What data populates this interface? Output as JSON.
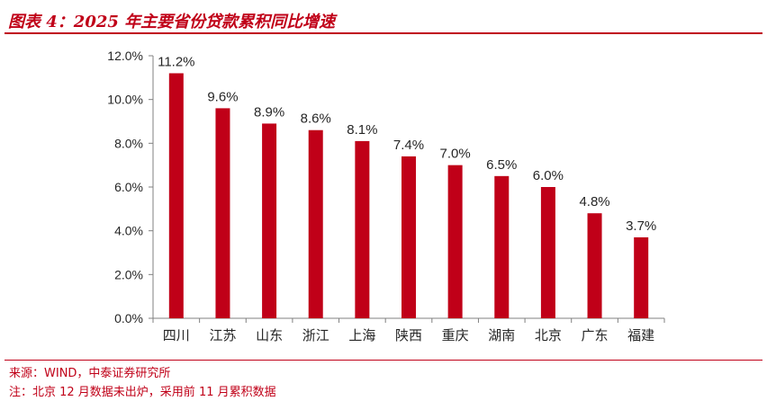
{
  "header": {
    "title": "图表 4：2025 年主要省份贷款累积同比增速"
  },
  "footer": {
    "source": "来源：WIND，中泰证券研究所",
    "note": "注：北京 12 月数据未出炉，采用前 11 月累积数据"
  },
  "colors": {
    "accent": "#c00018",
    "bar": "#c00018",
    "axis": "#808080",
    "text": "#262626"
  },
  "chart_data": {
    "type": "bar",
    "title": "",
    "xlabel": "",
    "ylabel": "",
    "categories": [
      "四川",
      "江苏",
      "山东",
      "浙江",
      "上海",
      "陕西",
      "重庆",
      "湖南",
      "北京",
      "广东",
      "福建"
    ],
    "values": [
      11.2,
      9.6,
      8.9,
      8.6,
      8.1,
      7.4,
      7.0,
      6.5,
      6.0,
      4.8,
      3.7
    ],
    "data_labels": [
      "11.2%",
      "9.6%",
      "8.9%",
      "8.6%",
      "8.1%",
      "7.4%",
      "7.0%",
      "6.5%",
      "6.0%",
      "4.8%",
      "3.7%"
    ],
    "ylim": [
      0,
      12
    ],
    "yticks": [
      0,
      2,
      4,
      6,
      8,
      10,
      12
    ],
    "ytick_labels": [
      "0.0%",
      "2.0%",
      "4.0%",
      "6.0%",
      "8.0%",
      "10.0%",
      "12.0%"
    ],
    "grid": false,
    "legend": "none"
  }
}
